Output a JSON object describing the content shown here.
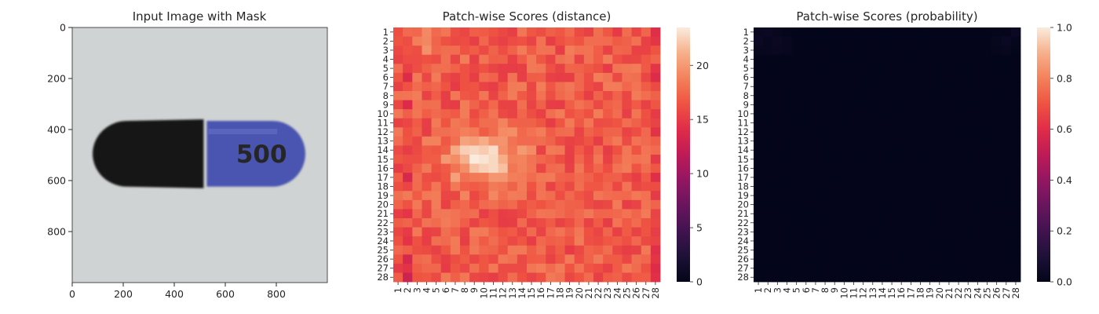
{
  "chart_data": [
    {
      "type": "image",
      "title": "Input Image with Mask",
      "xticks": [
        0,
        200,
        400,
        600,
        800
      ],
      "yticks": [
        0,
        200,
        400,
        600,
        800
      ],
      "xlim": [
        0,
        1000
      ],
      "ylim": [
        1000,
        0
      ],
      "capsule": {
        "label": "500",
        "cap_color": "#151515",
        "body_color": "#4a55b0",
        "background_color": "#d0d3d3",
        "extent_x": [
          80,
          920
        ],
        "extent_y": [
          360,
          630
        ],
        "join_x": 515
      }
    },
    {
      "type": "heatmap",
      "title": "Patch-wise Scores (distance)",
      "x_categories": [
        "1",
        "2",
        "3",
        "4",
        "5",
        "6",
        "7",
        "8",
        "9",
        "10",
        "11",
        "12",
        "13",
        "14",
        "15",
        "16",
        "17",
        "18",
        "19",
        "20",
        "21",
        "22",
        "23",
        "24",
        "25",
        "26",
        "27",
        "28"
      ],
      "y_categories": [
        "1",
        "2",
        "3",
        "4",
        "5",
        "6",
        "7",
        "8",
        "9",
        "10",
        "11",
        "12",
        "13",
        "14",
        "15",
        "16",
        "17",
        "18",
        "19",
        "20",
        "21",
        "22",
        "23",
        "24",
        "25",
        "26",
        "27",
        "28"
      ],
      "colorbar": {
        "min": 0,
        "max": 23.5,
        "ticks": [
          0,
          5,
          10,
          15,
          20
        ]
      },
      "colormap": "rocket",
      "value_range_estimate": [
        9,
        23.5
      ],
      "bright_region": {
        "center_row": 15,
        "center_col": 10,
        "peak": 23.5
      },
      "low_value_columns": [
        2,
        28
      ]
    },
    {
      "type": "heatmap",
      "title": "Patch-wise Scores (probability)",
      "x_categories": [
        "1",
        "2",
        "3",
        "4",
        "5",
        "6",
        "7",
        "8",
        "9",
        "10",
        "11",
        "12",
        "13",
        "14",
        "15",
        "16",
        "17",
        "18",
        "19",
        "20",
        "21",
        "22",
        "23",
        "24",
        "25",
        "26",
        "27",
        "28"
      ],
      "y_categories": [
        "1",
        "2",
        "3",
        "4",
        "5",
        "6",
        "7",
        "8",
        "9",
        "10",
        "11",
        "12",
        "13",
        "14",
        "15",
        "16",
        "17",
        "18",
        "19",
        "20",
        "21",
        "22",
        "23",
        "24",
        "25",
        "26",
        "27",
        "28"
      ],
      "colorbar": {
        "min": 0.0,
        "max": 1.0,
        "ticks": [
          "0.0",
          "0.2",
          "0.4",
          "0.6",
          "0.8",
          "1.0"
        ]
      },
      "colormap": "rocket",
      "value_range_estimate": [
        0.0,
        0.05
      ]
    }
  ]
}
